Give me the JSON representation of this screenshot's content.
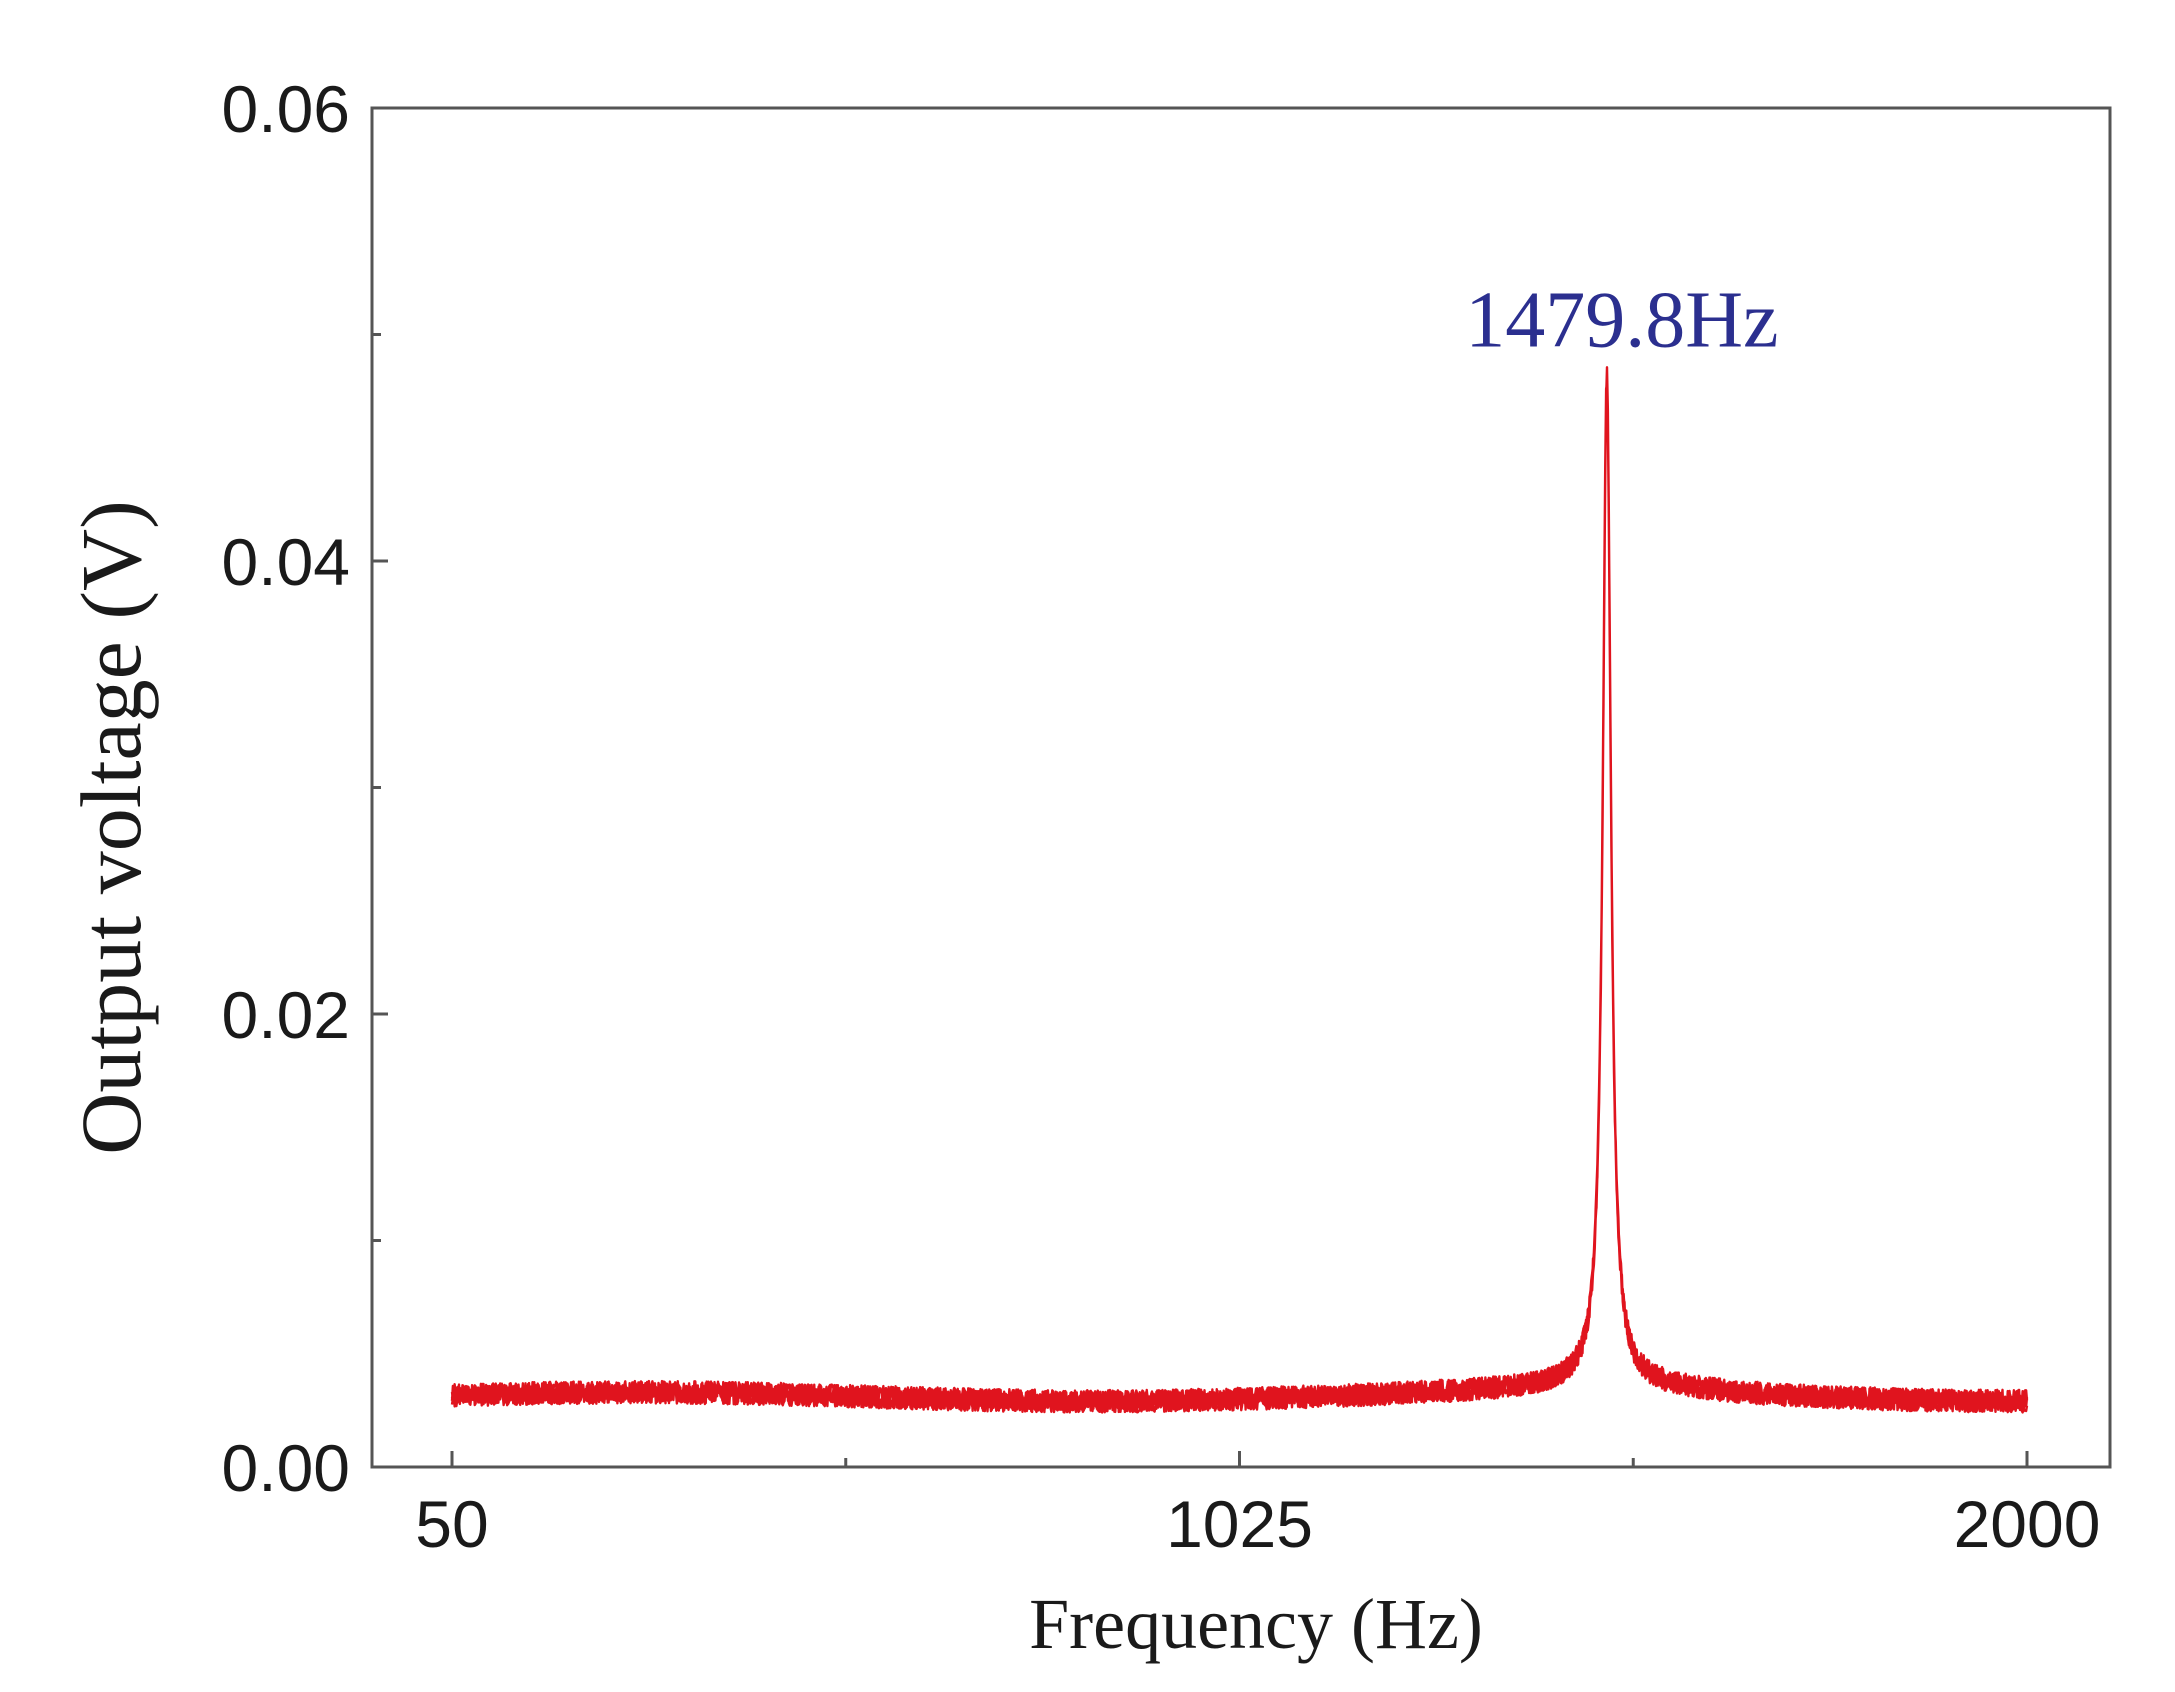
{
  "chart_data": {
    "type": "line",
    "title": "",
    "xlabel": "Frequency (Hz)",
    "ylabel": "Output voltage (V)",
    "xlim": [
      50,
      2000
    ],
    "ylim": [
      0.0,
      0.06
    ],
    "x_ticks": [
      50,
      1025,
      2000
    ],
    "x_tick_labels": [
      "50",
      "1025",
      "2000"
    ],
    "x_minor_ticks": [
      537.5,
      1512.5
    ],
    "y_ticks": [
      0.0,
      0.02,
      0.04,
      0.06
    ],
    "y_tick_labels": [
      "0.00",
      "0.02",
      "0.04",
      "0.06"
    ],
    "y_minor_ticks": [
      0.01,
      0.03,
      0.05
    ],
    "grid": false,
    "legend": "none",
    "series": [
      {
        "color": "#e0141e",
        "peak_frequency": 1479.8,
        "peak_value": 0.0475,
        "baseline_value": 0.0031,
        "half_width_hz": 6,
        "noise_amplitude": 0.0005
      }
    ],
    "annotations": [
      {
        "text": "1479.8Hz",
        "x": 1479.8,
        "y": 0.0485,
        "color": "#2b2f8f"
      }
    ]
  }
}
